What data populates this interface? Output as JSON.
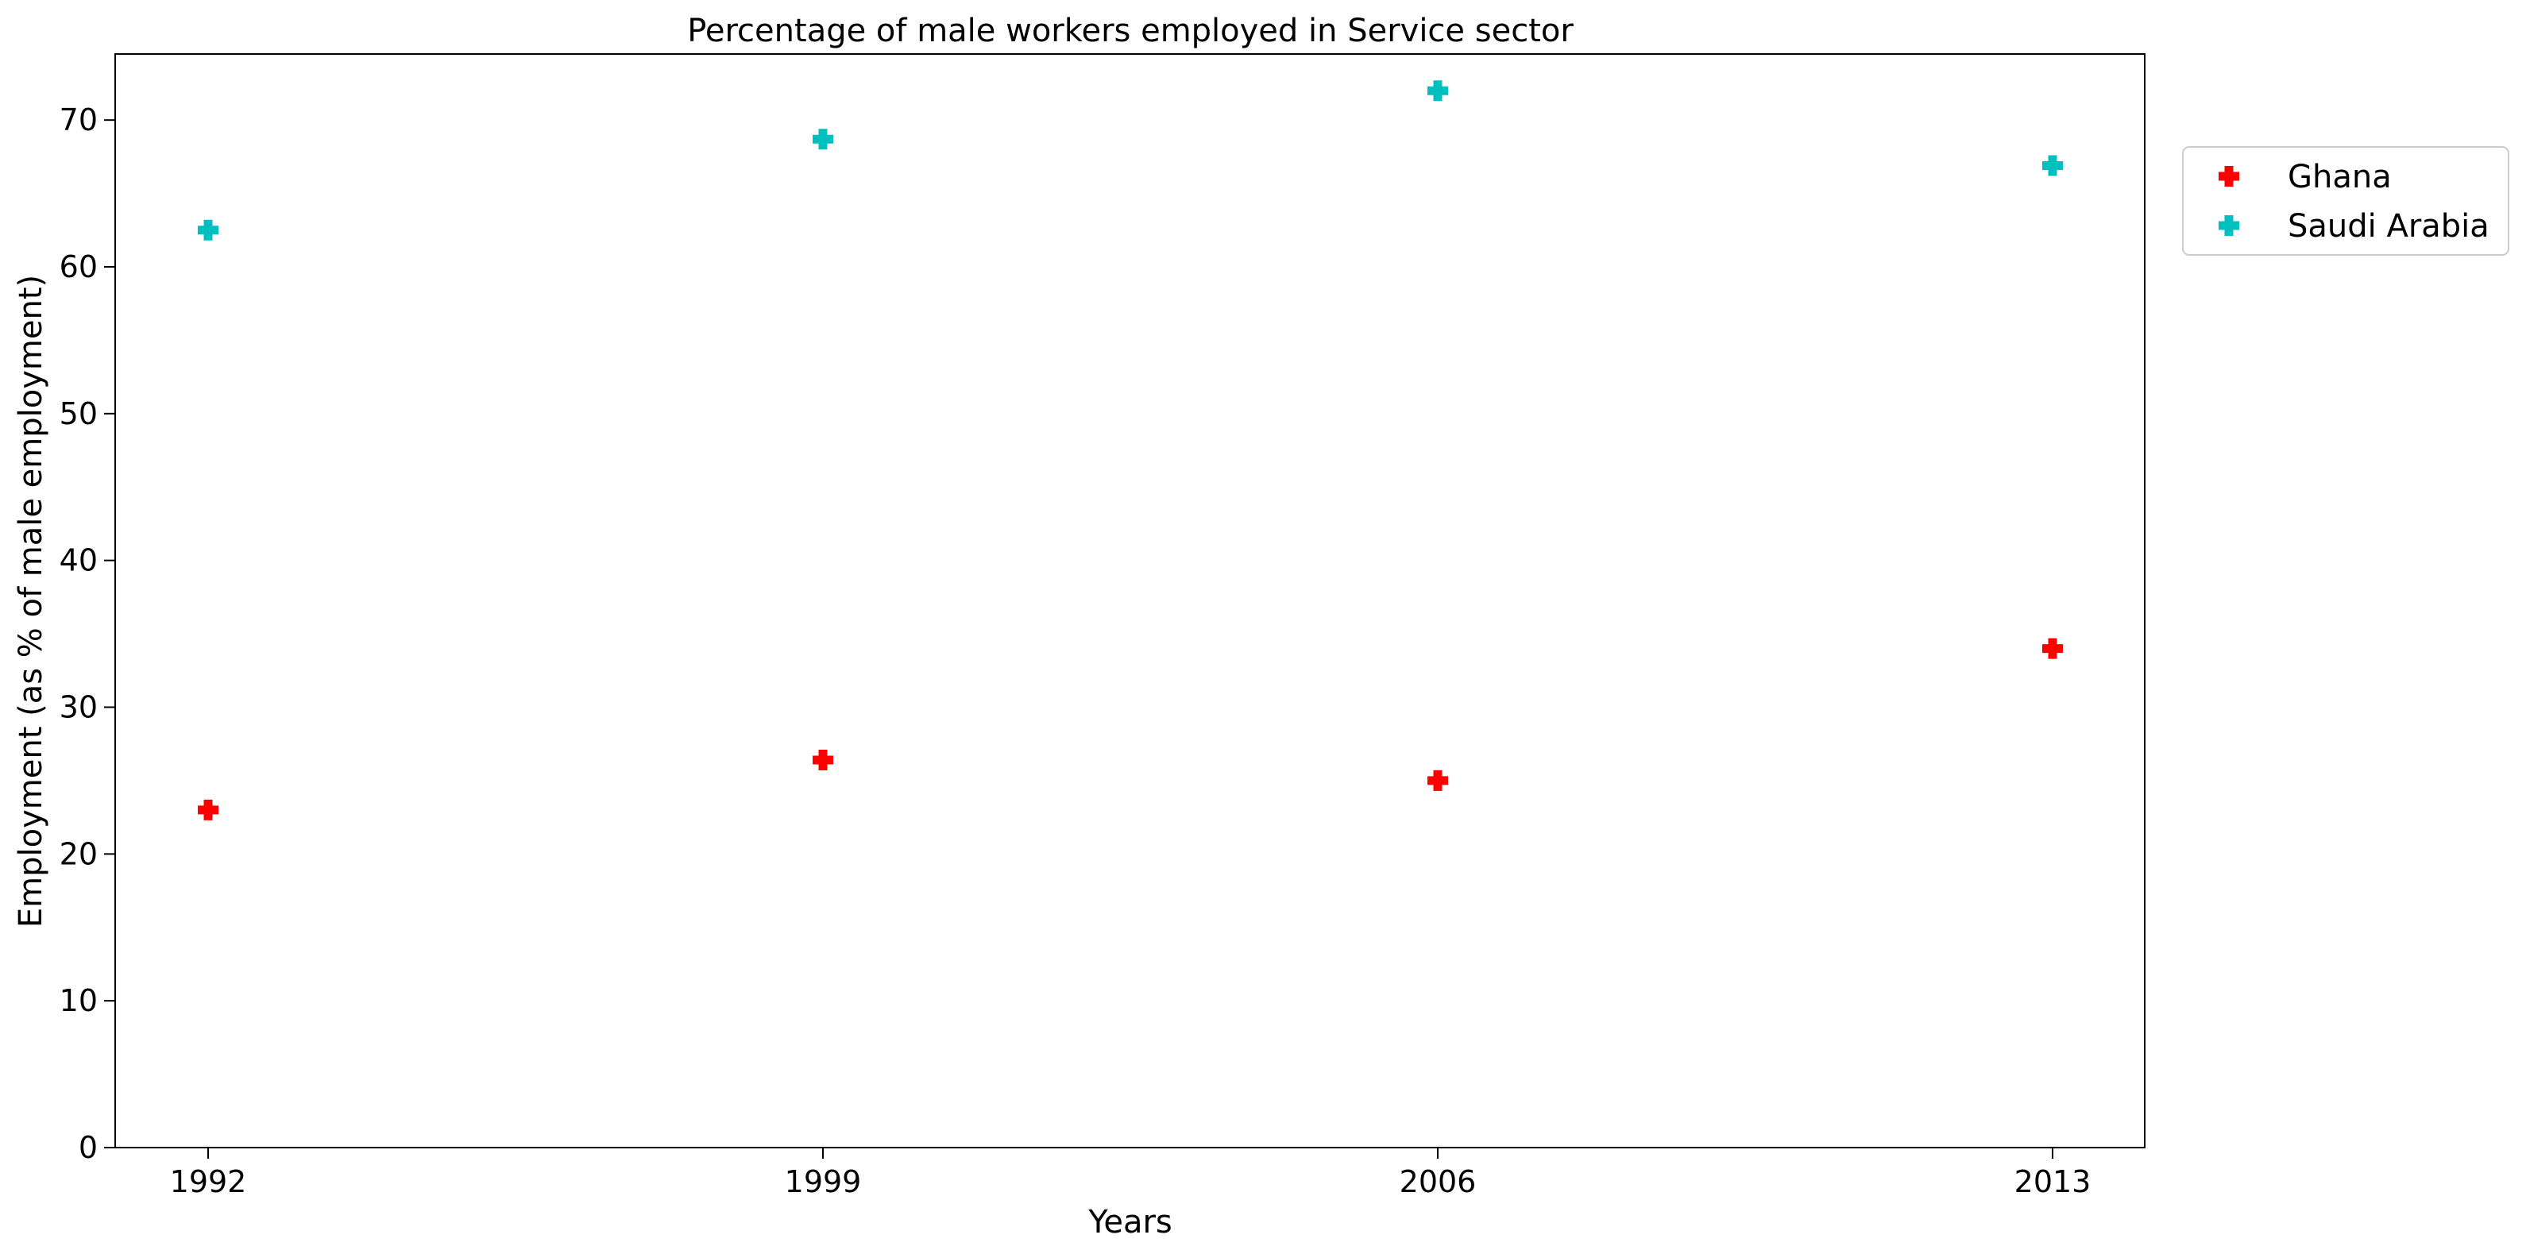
{
  "chart_data": {
    "type": "scatter",
    "title": "Percentage of male workers employed in Service sector",
    "xlabel": "Years",
    "ylabel": "Employment (as % of male employment)",
    "categories": [
      "1992",
      "1999",
      "2006",
      "2013"
    ],
    "ylim": [
      0,
      74.5
    ],
    "yticks": [
      0,
      10,
      20,
      30,
      40,
      50,
      60,
      70
    ],
    "grid": false,
    "legend": "outside-top-right",
    "marker": "plus-filled",
    "series": [
      {
        "name": "Ghana",
        "color": "#ff0000",
        "values": [
          23.0,
          26.4,
          25.0,
          34.0
        ]
      },
      {
        "name": "Saudi Arabia",
        "color": "#00bfbf",
        "values": [
          62.5,
          68.7,
          72.0,
          66.9
        ]
      }
    ]
  }
}
